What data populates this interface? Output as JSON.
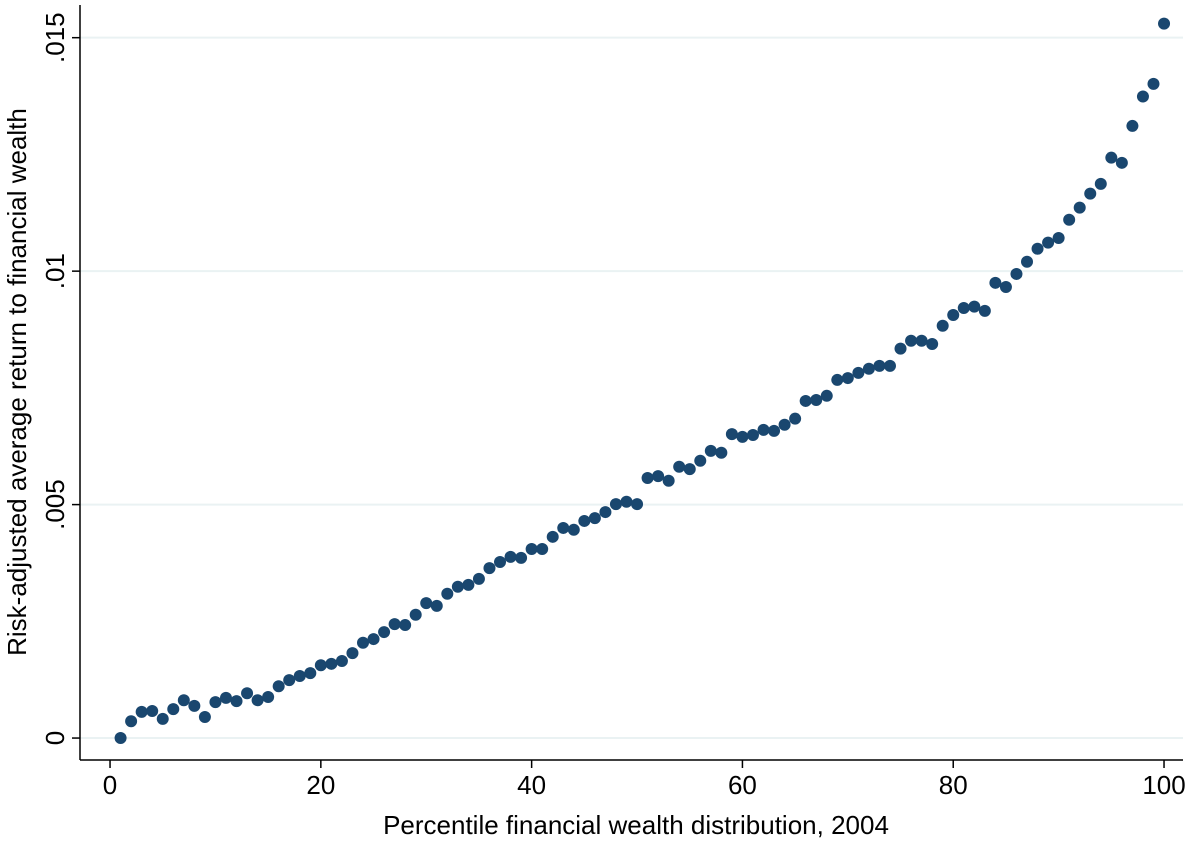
{
  "chart_data": {
    "type": "scatter",
    "x_label": "Percentile financial wealth distribution, 2004",
    "y_label": "Risk-adjusted average return to financial wealth",
    "x": [
      1,
      2,
      3,
      4,
      5,
      6,
      7,
      8,
      9,
      10,
      11,
      12,
      13,
      14,
      15,
      16,
      17,
      18,
      19,
      20,
      21,
      22,
      23,
      24,
      25,
      26,
      27,
      28,
      29,
      30,
      31,
      32,
      33,
      34,
      35,
      36,
      37,
      38,
      39,
      40,
      41,
      42,
      43,
      44,
      45,
      46,
      47,
      48,
      49,
      50,
      51,
      52,
      53,
      54,
      55,
      56,
      57,
      58,
      59,
      60,
      61,
      62,
      63,
      64,
      65,
      66,
      67,
      68,
      69,
      70,
      71,
      72,
      73,
      74,
      75,
      76,
      77,
      78,
      79,
      80,
      81,
      82,
      83,
      84,
      85,
      86,
      87,
      88,
      89,
      90,
      91,
      92,
      93,
      94,
      95,
      96,
      97,
      98,
      99,
      100
    ],
    "values": [
      0,
      0.00036,
      0.00056,
      0.00058,
      0.00041,
      0.00062,
      0.00081,
      0.00069,
      0.00045,
      0.00077,
      0.00086,
      0.00079,
      0.00096,
      0.00081,
      0.00088,
      0.00111,
      0.00124,
      0.00133,
      0.00139,
      0.00156,
      0.00159,
      0.00165,
      0.00182,
      0.00204,
      0.00212,
      0.00227,
      0.00244,
      0.00242,
      0.00264,
      0.00289,
      0.00283,
      0.00309,
      0.00324,
      0.00328,
      0.00341,
      0.00364,
      0.00377,
      0.00388,
      0.00386,
      0.00405,
      0.00405,
      0.00431,
      0.0045,
      0.00446,
      0.00465,
      0.00471,
      0.00484,
      0.00501,
      0.00506,
      0.00501,
      0.00557,
      0.00561,
      0.00551,
      0.00581,
      0.00576,
      0.00594,
      0.00615,
      0.00611,
      0.00651,
      0.00645,
      0.00649,
      0.0066,
      0.00658,
      0.00671,
      0.00684,
      0.00722,
      0.00724,
      0.00733,
      0.00767,
      0.00771,
      0.00782,
      0.00791,
      0.00797,
      0.00797,
      0.00834,
      0.00851,
      0.00851,
      0.00844,
      0.00883,
      0.00906,
      0.00921,
      0.00924,
      0.00915,
      0.00975,
      0.00966,
      0.00994,
      0.0102,
      0.01048,
      0.01061,
      0.01071,
      0.0111,
      0.01136,
      0.01166,
      0.01187,
      0.01243,
      0.01232,
      0.01311,
      0.01374,
      0.01401,
      0.0153
    ],
    "color": "#1a476f",
    "xlim": [
      -2.85,
      101.8
    ],
    "xticks": [
      0,
      20,
      40,
      60,
      80,
      100
    ],
    "ylim": [
      -0.00047,
      0.0157
    ],
    "yticks": [
      0,
      {
        "value": 0.005,
        "label": ".005"
      },
      {
        "value": 0.01,
        "label": ".01"
      },
      {
        "value": 0.015,
        "label": ".015"
      }
    ],
    "grid": true
  }
}
